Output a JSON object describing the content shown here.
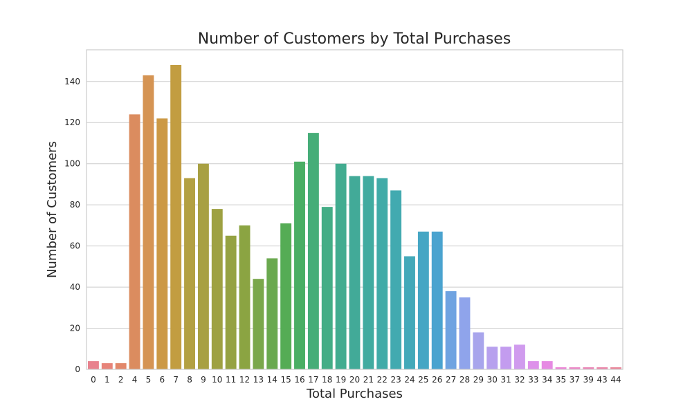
{
  "chart_data": {
    "type": "bar",
    "title": "Number of Customers by Total Purchases",
    "xlabel": "Total Purchases",
    "ylabel": "Number of Customers",
    "categories": [
      "0",
      "1",
      "2",
      "4",
      "5",
      "6",
      "7",
      "8",
      "9",
      "10",
      "11",
      "12",
      "13",
      "14",
      "15",
      "16",
      "17",
      "18",
      "19",
      "20",
      "21",
      "22",
      "23",
      "24",
      "25",
      "26",
      "27",
      "28",
      "29",
      "30",
      "31",
      "32",
      "33",
      "34",
      "35",
      "37",
      "39",
      "43",
      "44"
    ],
    "values": [
      4,
      3,
      3,
      124,
      143,
      122,
      148,
      93,
      100,
      78,
      65,
      70,
      44,
      54,
      71,
      101,
      115,
      79,
      100,
      94,
      94,
      93,
      87,
      55,
      67,
      67,
      38,
      35,
      18,
      11,
      11,
      12,
      4,
      4,
      1,
      1,
      1,
      1,
      1
    ],
    "yticks": [
      0,
      20,
      40,
      60,
      80,
      100,
      120,
      140
    ],
    "ylim": [
      0,
      155.4
    ],
    "grid": "horizontal",
    "colors": [
      "#e8828e",
      "#e7847a",
      "#e2886b",
      "#db8c5f",
      "#d59453",
      "#cc9945",
      "#c29d41",
      "#b3a042",
      "#a8a042",
      "#9ea142",
      "#95a242",
      "#8ba442",
      "#7aa74b",
      "#6aa94f",
      "#55ac55",
      "#4aae64",
      "#46ad78",
      "#44ad86",
      "#42ac90",
      "#42aa98",
      "#41aba0",
      "#41aba8",
      "#42aab0",
      "#43a9b9",
      "#45a6c4",
      "#4aa3cf",
      "#6fa3e1",
      "#8fa4eb",
      "#a8a5ec",
      "#b7a0ee",
      "#c39cef",
      "#d09bee",
      "#dd91ea",
      "#e68ae3",
      "#ec86d6",
      "#ec88c7",
      "#ea86b7",
      "#ea86a9",
      "#e9869a"
    ]
  }
}
